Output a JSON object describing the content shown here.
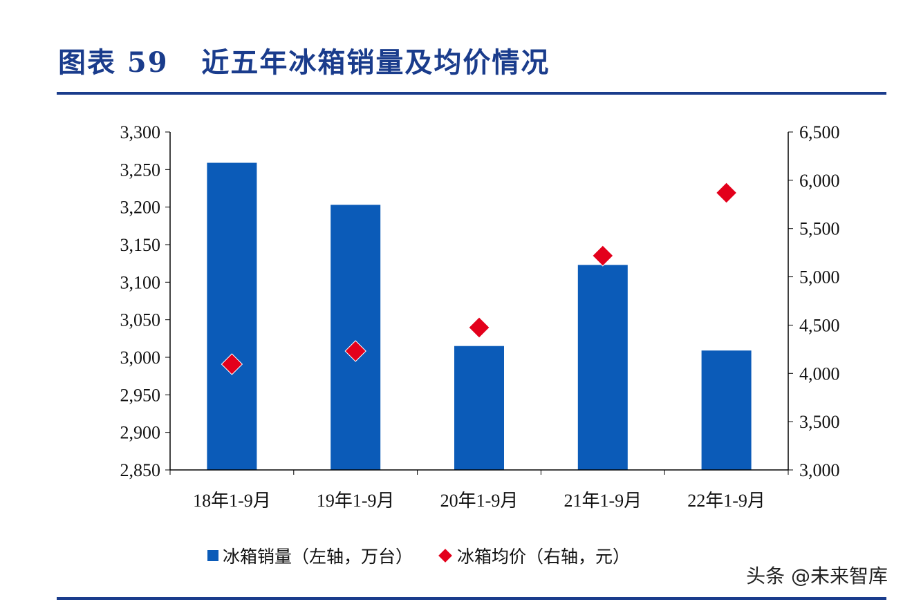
{
  "title": "图表 59   近五年冰箱销量及均价情况",
  "watermark": "头条 @未来智库",
  "colors": {
    "bar": "#0b5bb8",
    "marker": "#e3001b",
    "title": "#1a3c8c"
  },
  "chart_data": {
    "type": "bar+scatter",
    "title": "图表 59   近五年冰箱销量及均价情况",
    "categories": [
      "18年1-9月",
      "19年1-9月",
      "20年1-9月",
      "21年1-9月",
      "22年1-9月"
    ],
    "series": [
      {
        "name": "冰箱销量（左轴，万台）",
        "type": "bar",
        "axis": "left",
        "values": [
          3259,
          3203,
          3015,
          3123,
          3009
        ]
      },
      {
        "name": "冰箱均价（右轴，元）",
        "type": "scatter",
        "marker": "diamond",
        "axis": "right",
        "values": [
          4095,
          4231,
          4475,
          5219,
          5870
        ]
      }
    ],
    "y_left": {
      "lim": [
        2850,
        3300
      ],
      "ticks": [
        "2,850",
        "2,900",
        "2,950",
        "3,000",
        "3,050",
        "3,100",
        "3,150",
        "3,200",
        "3,250",
        "3,300"
      ]
    },
    "y_right": {
      "lim": [
        3000,
        6500
      ],
      "ticks": [
        "3,000",
        "3,500",
        "4,000",
        "4,500",
        "5,000",
        "5,500",
        "6,000",
        "6,500"
      ]
    },
    "grid": false,
    "legend": "bottom"
  }
}
